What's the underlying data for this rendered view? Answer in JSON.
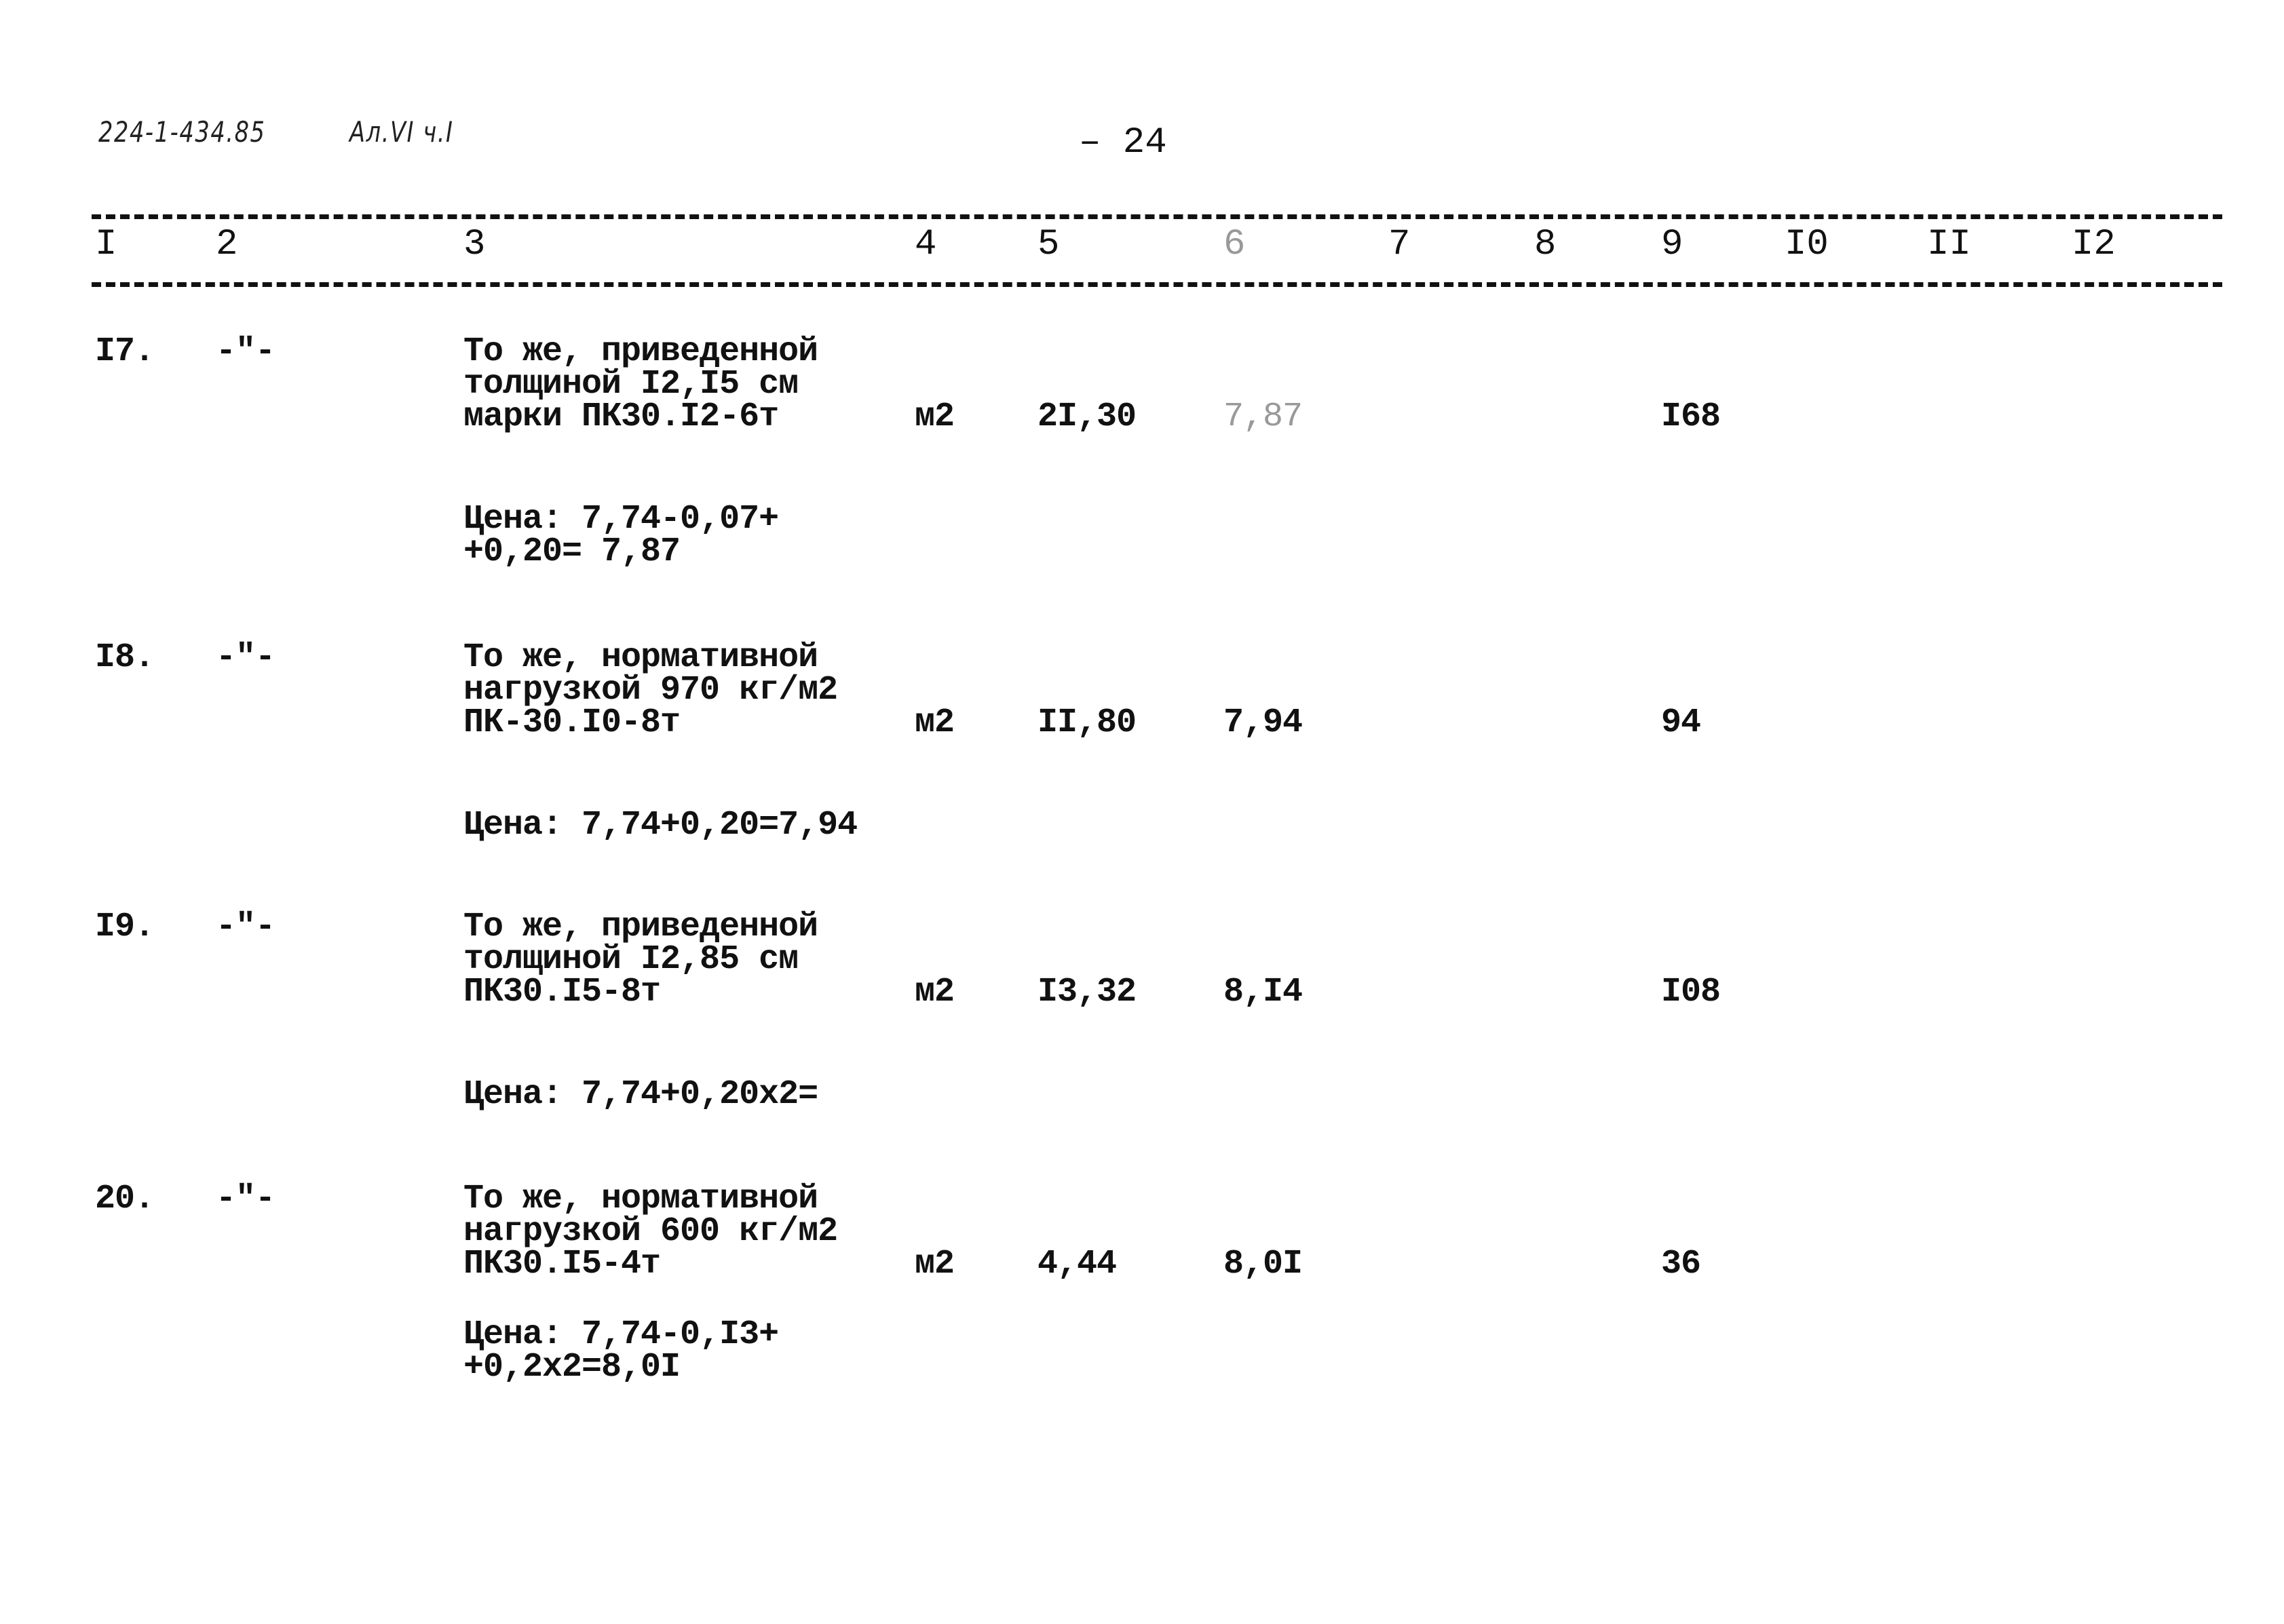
{
  "header": {
    "doc_code": "224-1-434.85",
    "album": "Ал.VI ч.I",
    "page_number": "– 24"
  },
  "columns": [
    "I",
    "2",
    "3",
    "4",
    "5",
    "6",
    "7",
    "8",
    "9",
    "I0",
    "II",
    "I2"
  ],
  "rows": [
    {
      "num": "I7.",
      "ditto": "-\"-",
      "desc": [
        "То же, приведенной",
        "толщиной I2,I5 см",
        "марки ПК30.I2-6т"
      ],
      "unit": "м2",
      "qty": "2I,30",
      "price": "7,87",
      "col9": "I68",
      "price_note": [
        "Цена: 7,74-0,07+",
        "+0,20= 7,87"
      ]
    },
    {
      "num": "I8.",
      "ditto": "-\"-",
      "desc": [
        "То же, нормативной",
        "нагрузкой 970 кг/м2",
        "ПК-30.I0-8т"
      ],
      "unit": "м2",
      "qty": "II,80",
      "price": "7,94",
      "col9": "94",
      "price_note": [
        "Цена: 7,74+0,20=7,94"
      ]
    },
    {
      "num": "I9.",
      "ditto": "-\"-",
      "desc": [
        "То же, приведенной",
        "толщиной I2,85 см",
        "ПК30.I5-8т"
      ],
      "unit": "м2",
      "qty": "I3,32",
      "price": "8,I4",
      "col9": "I08",
      "price_note": [
        "Цена: 7,74+0,20x2="
      ]
    },
    {
      "num": "20.",
      "ditto": "-\"-",
      "desc": [
        "То же, нормативной",
        "нагрузкой 600 кг/м2",
        "ПК30.I5-4т"
      ],
      "unit": "м2",
      "qty": "4,44",
      "price": "8,0I",
      "col9": "36",
      "price_note": [
        "Цена: 7,74-0,I3+",
        "+0,2x2=8,0I"
      ]
    }
  ]
}
